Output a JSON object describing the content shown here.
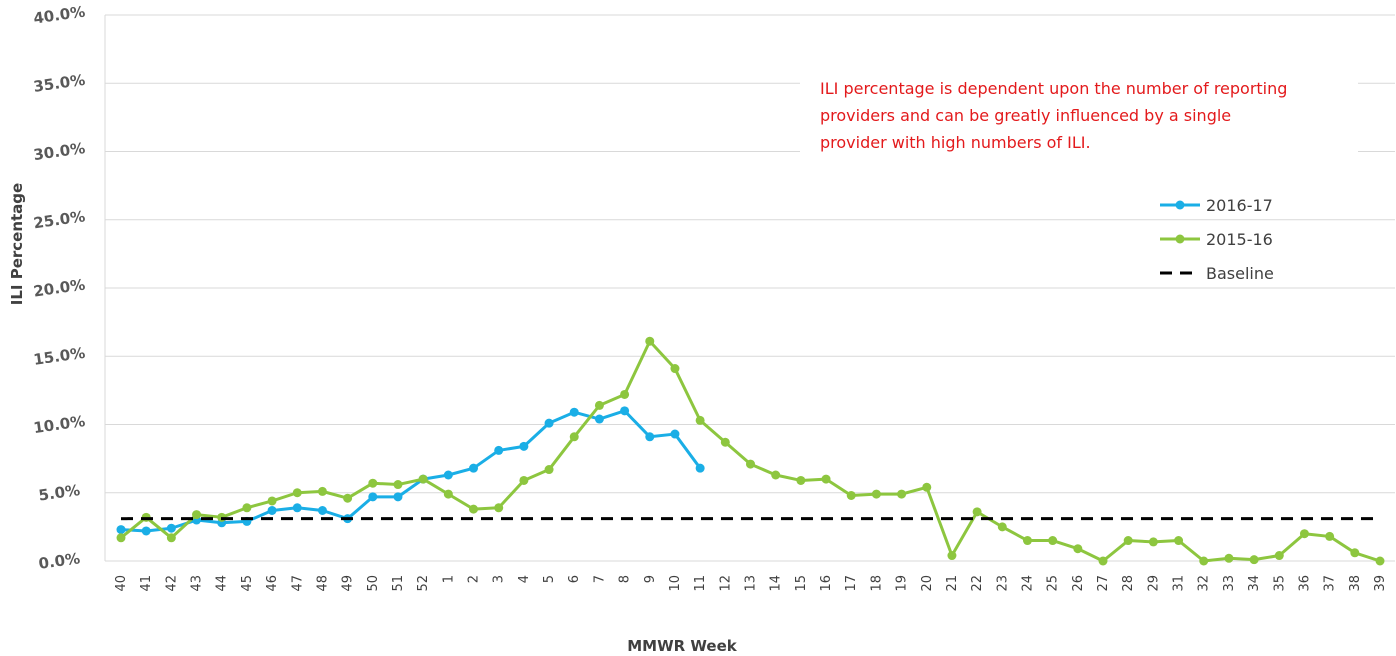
{
  "chart_data": {
    "type": "line",
    "xlabel": "MMWR Week",
    "ylabel": "ILI Percentage",
    "ylim": [
      0,
      40
    ],
    "y_tick_labels": [
      "0.0%",
      "5.0%",
      "10.0%",
      "15.0%",
      "20.0%",
      "25.0%",
      "30.0%",
      "35.0%",
      "40.0%"
    ],
    "y_ticks": [
      0,
      5,
      10,
      15,
      20,
      25,
      30,
      35,
      40
    ],
    "grid": "horizontal",
    "legend_position": "right",
    "annotation": "ILI percentage is dependent upon the number of reporting providers and can be greatly influenced by a single provider with high numbers of ILI.",
    "categories": [
      "40",
      "41",
      "42",
      "43",
      "44",
      "45",
      "46",
      "47",
      "48",
      "49",
      "50",
      "51",
      "52",
      "1",
      "2",
      "3",
      "4",
      "5",
      "6",
      "7",
      "8",
      "9",
      "10",
      "11",
      "12",
      "13",
      "14",
      "15",
      "16",
      "17",
      "18",
      "19",
      "20",
      "21",
      "22",
      "23",
      "24",
      "25",
      "26",
      "27",
      "28",
      "29",
      "31",
      "32",
      "33",
      "34",
      "35",
      "36",
      "37",
      "38",
      "39"
    ],
    "series": [
      {
        "name": "2016-17",
        "color": "#1aaee6",
        "marker": "circle",
        "values": [
          2.3,
          2.2,
          2.4,
          3.0,
          2.8,
          2.9,
          3.7,
          3.9,
          3.7,
          3.1,
          4.7,
          4.7,
          6.0,
          6.3,
          6.8,
          8.1,
          8.4,
          10.1,
          10.9,
          10.4,
          11.0,
          9.1,
          9.3,
          6.8,
          null,
          null,
          null,
          null,
          null,
          null,
          null,
          null,
          null,
          null,
          null,
          null,
          null,
          null,
          null,
          null,
          null,
          null,
          null,
          null,
          null,
          null,
          null,
          null,
          null,
          null,
          null
        ]
      },
      {
        "name": "2015-16",
        "color": "#8dc63f",
        "marker": "circle",
        "values": [
          1.7,
          3.2,
          1.7,
          3.4,
          3.2,
          3.9,
          4.4,
          5.0,
          5.1,
          4.6,
          5.7,
          5.6,
          6.0,
          4.9,
          3.8,
          3.9,
          5.9,
          6.7,
          9.1,
          11.4,
          12.2,
          16.1,
          14.1,
          10.3,
          8.7,
          7.1,
          6.3,
          5.9,
          6.0,
          4.8,
          4.9,
          4.9,
          5.4,
          0.4,
          3.6,
          2.5,
          1.5,
          1.5,
          0.9,
          0.0,
          1.5,
          1.4,
          1.5,
          0.0,
          0.2,
          0.1,
          0.4,
          2.0,
          1.8,
          0.6,
          0.0
        ]
      },
      {
        "name": "Baseline",
        "color": "#000000",
        "marker": "none",
        "dashed": true,
        "values": [
          3.1,
          3.1,
          3.1,
          3.1,
          3.1,
          3.1,
          3.1,
          3.1,
          3.1,
          3.1,
          3.1,
          3.1,
          3.1,
          3.1,
          3.1,
          3.1,
          3.1,
          3.1,
          3.1,
          3.1,
          3.1,
          3.1,
          3.1,
          3.1,
          3.1,
          3.1,
          3.1,
          3.1,
          3.1,
          3.1,
          3.1,
          3.1,
          3.1,
          3.1,
          3.1,
          3.1,
          3.1,
          3.1,
          3.1,
          3.1,
          3.1,
          3.1,
          3.1,
          3.1,
          3.1,
          3.1,
          3.1,
          3.1,
          3.1,
          3.1,
          3.1
        ]
      }
    ]
  }
}
